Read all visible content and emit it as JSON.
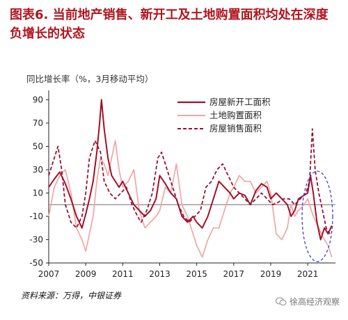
{
  "title": "图表6.  当前地产销售、新开工及土地购置面积均处在深度负增长的状态",
  "source": "资料来源：万得，中银证券",
  "watermark": "徐高经济观察",
  "colors": {
    "title": "#b1151f",
    "new_starts": "#a0102a",
    "land": "#f2a5a5",
    "sales": "#9a1030",
    "zero_line": "#8a8a8a",
    "highlight_ellipse": "#3b3fd6"
  },
  "chart_data": {
    "type": "line",
    "ylabel": "同比增长率（%，3月移动平均）",
    "ylim": [
      -50,
      98
    ],
    "yticks": [
      90,
      70,
      50,
      30,
      10,
      -10,
      -30,
      -50
    ],
    "xlim": [
      2007,
      2022.5
    ],
    "xticks": [
      2007,
      2009,
      2011,
      2013,
      2015,
      2017,
      2019,
      2021
    ],
    "xtick_labels": [
      "2007",
      "2009",
      "2011",
      "2013",
      "2015",
      "2017",
      "2019",
      "2021"
    ],
    "legend_position": "top-right",
    "annotation": "highlight ellipse around 2021–2022 decline",
    "series": [
      {
        "name": "房屋新开工面积",
        "style": "solid-dark",
        "x": [
          2007.0,
          2007.3,
          2007.6,
          2007.9,
          2008.2,
          2008.5,
          2008.8,
          2009.0,
          2009.2,
          2009.4,
          2009.6,
          2009.75,
          2009.85,
          2010.0,
          2010.2,
          2010.4,
          2010.6,
          2010.8,
          2011.0,
          2011.3,
          2011.6,
          2011.9,
          2012.2,
          2012.5,
          2012.8,
          2013.0,
          2013.3,
          2013.6,
          2013.9,
          2014.2,
          2014.5,
          2014.8,
          2015.0,
          2015.3,
          2015.6,
          2015.9,
          2016.2,
          2016.5,
          2016.8,
          2017.0,
          2017.3,
          2017.6,
          2017.9,
          2018.2,
          2018.5,
          2018.8,
          2019.0,
          2019.3,
          2019.6,
          2019.9,
          2020.1,
          2020.3,
          2020.5,
          2020.8,
          2021.0,
          2021.15,
          2021.3,
          2021.5,
          2021.7,
          2021.9,
          2022.1,
          2022.3
        ],
        "values": [
          15,
          22,
          28,
          18,
          5,
          -10,
          -20,
          -8,
          5,
          20,
          45,
          70,
          90,
          65,
          40,
          25,
          20,
          15,
          20,
          10,
          0,
          -5,
          -10,
          -5,
          5,
          25,
          18,
          10,
          5,
          -10,
          -15,
          -10,
          -15,
          -20,
          -10,
          5,
          20,
          15,
          10,
          5,
          10,
          8,
          0,
          12,
          18,
          15,
          5,
          10,
          5,
          0,
          -10,
          -5,
          5,
          8,
          10,
          25,
          10,
          -15,
          -30,
          -20,
          -25,
          -18
        ]
      },
      {
        "name": "土地购置面积",
        "style": "solid-light",
        "x": [
          2007.0,
          2007.3,
          2007.6,
          2007.9,
          2008.2,
          2008.5,
          2008.8,
          2009.0,
          2009.2,
          2009.4,
          2009.6,
          2009.8,
          2010.0,
          2010.2,
          2010.4,
          2010.6,
          2010.8,
          2011.0,
          2011.3,
          2011.6,
          2011.9,
          2012.2,
          2012.5,
          2012.8,
          2013.0,
          2013.3,
          2013.6,
          2013.9,
          2014.2,
          2014.5,
          2014.8,
          2015.0,
          2015.3,
          2015.6,
          2015.9,
          2016.2,
          2016.5,
          2016.8,
          2017.0,
          2017.3,
          2017.6,
          2017.9,
          2018.2,
          2018.5,
          2018.8,
          2019.0,
          2019.3,
          2019.6,
          2019.9,
          2020.1,
          2020.3,
          2020.5,
          2020.8,
          2021.0,
          2021.3,
          2021.6,
          2021.9,
          2022.1,
          2022.3
        ],
        "values": [
          -10,
          15,
          25,
          30,
          10,
          -20,
          -30,
          -40,
          -25,
          -10,
          20,
          40,
          35,
          25,
          40,
          55,
          30,
          15,
          20,
          30,
          -5,
          -20,
          -15,
          -10,
          -5,
          15,
          10,
          35,
          0,
          -10,
          -25,
          -35,
          -45,
          -30,
          -20,
          -20,
          -5,
          10,
          15,
          25,
          20,
          20,
          10,
          15,
          20,
          10,
          -25,
          -30,
          -20,
          0,
          -10,
          -5,
          0,
          5,
          -10,
          -20,
          -30,
          -35,
          -45
        ]
      },
      {
        "name": "房屋销售面积",
        "style": "dashed",
        "x": [
          2007.0,
          2007.3,
          2007.5,
          2007.7,
          2007.9,
          2008.2,
          2008.5,
          2008.8,
          2009.0,
          2009.2,
          2009.5,
          2009.8,
          2010.0,
          2010.3,
          2010.6,
          2010.9,
          2011.2,
          2011.5,
          2011.8,
          2012.0,
          2012.3,
          2012.6,
          2012.9,
          2013.1,
          2013.4,
          2013.7,
          2014.0,
          2014.3,
          2014.6,
          2014.9,
          2015.2,
          2015.5,
          2015.8,
          2016.1,
          2016.4,
          2016.7,
          2017.0,
          2017.3,
          2017.6,
          2017.9,
          2018.2,
          2018.5,
          2018.8,
          2019.1,
          2019.4,
          2019.7,
          2020.0,
          2020.3,
          2020.6,
          2020.9,
          2021.1,
          2021.25,
          2021.4,
          2021.6,
          2021.8,
          2022.0,
          2022.2
        ],
        "values": [
          25,
          40,
          50,
          30,
          0,
          -15,
          -20,
          -10,
          10,
          40,
          55,
          45,
          20,
          10,
          5,
          10,
          15,
          0,
          -10,
          -15,
          -5,
          10,
          40,
          45,
          30,
          15,
          0,
          -10,
          -15,
          -10,
          -5,
          15,
          20,
          30,
          35,
          25,
          15,
          10,
          5,
          0,
          5,
          10,
          5,
          0,
          2,
          5,
          5,
          0,
          5,
          10,
          20,
          65,
          30,
          10,
          -5,
          -20,
          -25
        ]
      }
    ]
  }
}
